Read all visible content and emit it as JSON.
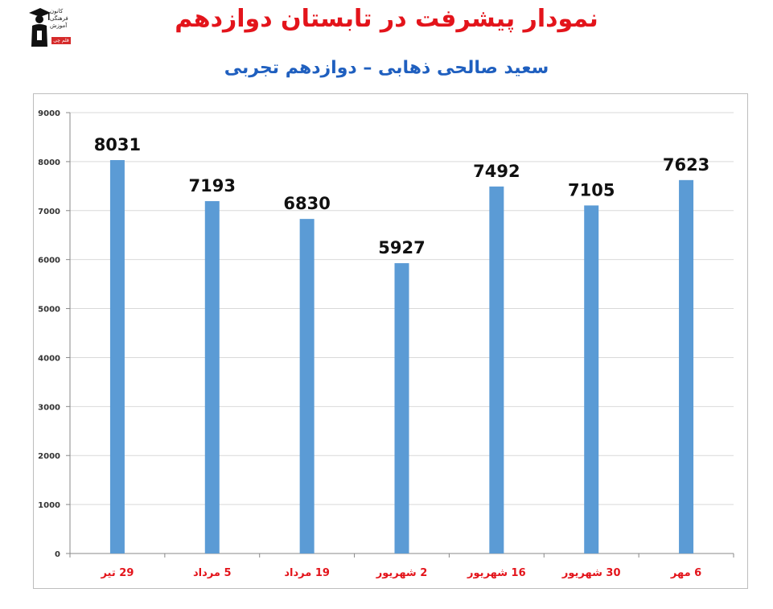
{
  "header": {
    "title": "نمودار پیشرفت در تابستان دوازدهم",
    "subtitle": "سعید صالحی ذهابی – دوازدهم تجربی",
    "logo_lines": [
      "کانون",
      "فرهنگی",
      "آموزش"
    ],
    "logo_badge": "قلم چی"
  },
  "colors": {
    "bar": "#5b9bd5",
    "title": "#e3141b",
    "subtitle": "#1f5fbf",
    "xtick": "#e3141b",
    "grid": "#d9d9d9"
  },
  "chart_data": {
    "type": "bar",
    "categories": [
      "29 تیر",
      "5 مرداد",
      "19 مرداد",
      "2 شهریور",
      "16 شهریور",
      "30 شهریور",
      "6 مهر"
    ],
    "values": [
      8031,
      7193,
      6830,
      5927,
      7492,
      7105,
      7623
    ],
    "data_labels": [
      "8031",
      "7193",
      "6830",
      "5927",
      "7492",
      "7105",
      "7623"
    ],
    "yticks": [
      "0",
      "1000",
      "2000",
      "3000",
      "4000",
      "5000",
      "6000",
      "7000",
      "8000",
      "9000"
    ],
    "ylim": [
      0,
      9000
    ],
    "grid": true,
    "legend": "none",
    "xlabel": "",
    "ylabel": ""
  }
}
